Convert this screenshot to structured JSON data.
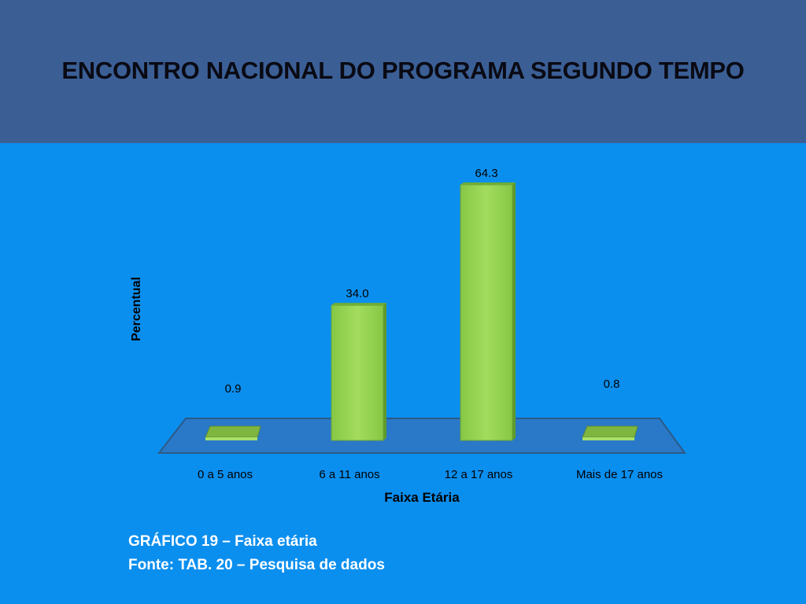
{
  "header": {
    "title": "ENCONTRO NACIONAL DO PROGRAMA SEGUNDO TEMPO",
    "background": "#3b5f95"
  },
  "slide": {
    "background": "#0b8fef"
  },
  "chart_data": {
    "type": "bar",
    "style": "3d",
    "title": "",
    "xlabel": "Faixa Etária",
    "ylabel": "Percentual",
    "categories": [
      "0 a 5 anos",
      "6 a 11 anos",
      "12 a 17 anos",
      "Mais de 17 anos"
    ],
    "series": [
      {
        "values": [
          0.9,
          34.0,
          64.3,
          0.8
        ],
        "labels": [
          "0.9",
          "34.0",
          "64.3",
          "0.8"
        ]
      }
    ],
    "ylim": [
      0,
      64.3
    ],
    "grid": false,
    "legend": "none",
    "bar_color": "#92d050",
    "floor_color": "#2a78c8"
  },
  "caption": {
    "line1": "GRÁFICO 19 – Faixa etária",
    "line2": "Fonte: TAB. 20 – Pesquisa de dados"
  }
}
